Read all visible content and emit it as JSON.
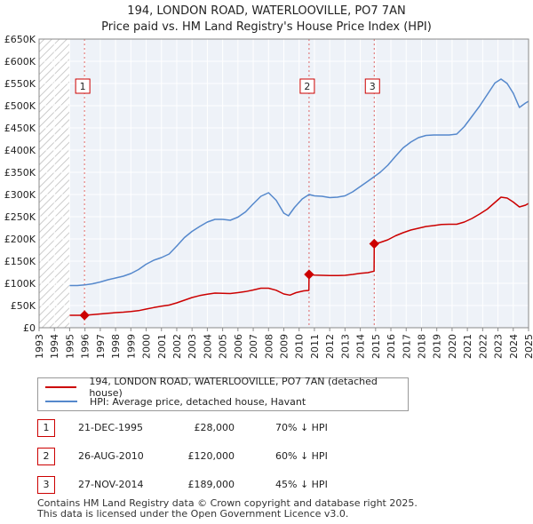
{
  "chart_data": {
    "type": "line",
    "title": [
      "194, LONDON ROAD, WATERLOOVILLE, PO7 7AN",
      "Price paid vs. HM Land Registry's House Price Index (HPI)"
    ],
    "xlim": [
      1993,
      2025
    ],
    "ylim": [
      0,
      650000
    ],
    "x_ticks": [
      "1993",
      "1994",
      "1995",
      "1996",
      "1997",
      "1998",
      "1999",
      "2000",
      "2001",
      "2002",
      "2003",
      "2004",
      "2005",
      "2006",
      "2007",
      "2008",
      "2009",
      "2010",
      "2011",
      "2012",
      "2013",
      "2014",
      "2015",
      "2016",
      "2017",
      "2018",
      "2019",
      "2020",
      "2021",
      "2022",
      "2023",
      "2024",
      "2025"
    ],
    "y_ticks": [
      {
        "value": 0,
        "label": "£0"
      },
      {
        "value": 50000,
        "label": "£50K"
      },
      {
        "value": 100000,
        "label": "£100K"
      },
      {
        "value": 150000,
        "label": "£150K"
      },
      {
        "value": 200000,
        "label": "£200K"
      },
      {
        "value": 250000,
        "label": "£250K"
      },
      {
        "value": 300000,
        "label": "£300K"
      },
      {
        "value": 350000,
        "label": "£350K"
      },
      {
        "value": 400000,
        "label": "£400K"
      },
      {
        "value": 450000,
        "label": "£450K"
      },
      {
        "value": 500000,
        "label": "£500K"
      },
      {
        "value": 550000,
        "label": "£550K"
      },
      {
        "value": 600000,
        "label": "£600K"
      },
      {
        "value": 650000,
        "label": "£650K"
      }
    ],
    "hatched_region": [
      1993,
      1995
    ],
    "series": [
      {
        "name": "194, LONDON ROAD, WATERLOOVILLE, PO7 7AN (detached house)",
        "color": "#cc0000",
        "points": [
          [
            1995.0,
            28000
          ],
          [
            1995.97,
            28000
          ],
          [
            1996.5,
            29500
          ],
          [
            1997.0,
            31000
          ],
          [
            1997.5,
            32500
          ],
          [
            1998.0,
            34000
          ],
          [
            1998.5,
            35000
          ],
          [
            1999.0,
            36500
          ],
          [
            1999.5,
            38500
          ],
          [
            2000.0,
            42000
          ],
          [
            2000.5,
            45500
          ],
          [
            2001.0,
            48500
          ],
          [
            2001.5,
            51000
          ],
          [
            2002.0,
            56000
          ],
          [
            2002.5,
            62000
          ],
          [
            2003.0,
            68000
          ],
          [
            2003.5,
            72500
          ],
          [
            2004.0,
            75500
          ],
          [
            2004.5,
            78000
          ],
          [
            2005.0,
            77500
          ],
          [
            2005.5,
            77000
          ],
          [
            2006.0,
            79000
          ],
          [
            2006.5,
            81500
          ],
          [
            2007.0,
            85000
          ],
          [
            2007.5,
            89000
          ],
          [
            2008.0,
            89000
          ],
          [
            2008.5,
            84500
          ],
          [
            2009.0,
            76000
          ],
          [
            2009.4,
            73500
          ],
          [
            2009.8,
            79000
          ],
          [
            2010.3,
            83000
          ],
          [
            2010.64,
            84000
          ],
          [
            2010.65,
            120000
          ],
          [
            2011.0,
            118500
          ],
          [
            2011.5,
            118000
          ],
          [
            2012.0,
            117500
          ],
          [
            2012.5,
            117500
          ],
          [
            2013.0,
            118000
          ],
          [
            2013.5,
            120000
          ],
          [
            2014.0,
            122500
          ],
          [
            2014.5,
            124000
          ],
          [
            2014.9,
            127500
          ],
          [
            2014.91,
            189000
          ],
          [
            2015.3,
            192000
          ],
          [
            2015.8,
            198000
          ],
          [
            2016.3,
            207000
          ],
          [
            2016.8,
            214000
          ],
          [
            2017.3,
            220000
          ],
          [
            2017.8,
            224000
          ],
          [
            2018.3,
            228000
          ],
          [
            2018.8,
            230000
          ],
          [
            2019.3,
            232500
          ],
          [
            2019.8,
            233000
          ],
          [
            2020.3,
            233000
          ],
          [
            2020.8,
            238000
          ],
          [
            2021.3,
            246000
          ],
          [
            2021.8,
            256000
          ],
          [
            2022.3,
            267000
          ],
          [
            2022.8,
            282000
          ],
          [
            2023.2,
            294000
          ],
          [
            2023.6,
            292000
          ],
          [
            2024.0,
            283000
          ],
          [
            2024.4,
            272000
          ],
          [
            2024.8,
            276000
          ],
          [
            2025.0,
            280000
          ]
        ]
      },
      {
        "name": "HPI: Average price, detached house, Havant",
        "color": "#5588cc",
        "points": [
          [
            1995.0,
            95000
          ],
          [
            1995.5,
            95000
          ],
          [
            1996.0,
            96500
          ],
          [
            1996.5,
            99000
          ],
          [
            1997.0,
            103000
          ],
          [
            1997.5,
            108000
          ],
          [
            1998.0,
            112000
          ],
          [
            1998.5,
            116000
          ],
          [
            1999.0,
            122000
          ],
          [
            1999.5,
            131000
          ],
          [
            2000.0,
            143000
          ],
          [
            2000.5,
            152000
          ],
          [
            2001.0,
            158000
          ],
          [
            2001.5,
            166000
          ],
          [
            2002.0,
            184000
          ],
          [
            2002.5,
            203000
          ],
          [
            2003.0,
            217000
          ],
          [
            2003.5,
            228000
          ],
          [
            2004.0,
            238000
          ],
          [
            2004.5,
            244000
          ],
          [
            2005.0,
            244000
          ],
          [
            2005.5,
            242000
          ],
          [
            2006.0,
            249000
          ],
          [
            2006.5,
            261000
          ],
          [
            2007.0,
            279000
          ],
          [
            2007.5,
            296000
          ],
          [
            2008.0,
            304000
          ],
          [
            2008.5,
            287000
          ],
          [
            2009.0,
            258000
          ],
          [
            2009.3,
            252000
          ],
          [
            2009.7,
            271000
          ],
          [
            2010.2,
            290000
          ],
          [
            2010.65,
            300000
          ],
          [
            2011.0,
            297000
          ],
          [
            2011.5,
            296000
          ],
          [
            2012.0,
            293000
          ],
          [
            2012.5,
            294000
          ],
          [
            2013.0,
            297000
          ],
          [
            2013.5,
            306000
          ],
          [
            2014.0,
            318000
          ],
          [
            2014.5,
            330000
          ],
          [
            2014.9,
            340000
          ],
          [
            2015.3,
            350000
          ],
          [
            2015.8,
            366000
          ],
          [
            2016.3,
            386000
          ],
          [
            2016.8,
            405000
          ],
          [
            2017.3,
            418000
          ],
          [
            2017.8,
            428000
          ],
          [
            2018.3,
            433000
          ],
          [
            2018.8,
            434000
          ],
          [
            2019.3,
            434000
          ],
          [
            2019.8,
            434000
          ],
          [
            2020.3,
            436000
          ],
          [
            2020.8,
            453000
          ],
          [
            2021.3,
            476000
          ],
          [
            2021.8,
            499000
          ],
          [
            2022.3,
            525000
          ],
          [
            2022.8,
            551000
          ],
          [
            2023.2,
            560000
          ],
          [
            2023.6,
            550000
          ],
          [
            2024.0,
            528000
          ],
          [
            2024.4,
            496000
          ],
          [
            2024.8,
            506000
          ],
          [
            2025.0,
            510000
          ]
        ]
      }
    ],
    "transactions": [
      {
        "label": "1",
        "x": 1995.97,
        "y": 28000
      },
      {
        "label": "2",
        "x": 2010.65,
        "y": 120000
      },
      {
        "label": "3",
        "x": 2014.91,
        "y": 189000
      }
    ]
  },
  "legend": [
    {
      "label": "194, LONDON ROAD, WATERLOOVILLE, PO7 7AN (detached house)",
      "color": "#cc0000"
    },
    {
      "label": "HPI: Average price, detached house, Havant",
      "color": "#5588cc"
    }
  ],
  "transactions_table": [
    {
      "num": "1",
      "date": "21-DEC-1995",
      "price": "£28,000",
      "hpi": "70% ↓ HPI"
    },
    {
      "num": "2",
      "date": "26-AUG-2010",
      "price": "£120,000",
      "hpi": "60% ↓ HPI"
    },
    {
      "num": "3",
      "date": "27-NOV-2014",
      "price": "£189,000",
      "hpi": "45% ↓ HPI"
    }
  ],
  "footer": {
    "line1": "Contains HM Land Registry data © Crown copyright and database right 2025.",
    "line2": "This data is licensed under the Open Government Licence v3.0."
  }
}
